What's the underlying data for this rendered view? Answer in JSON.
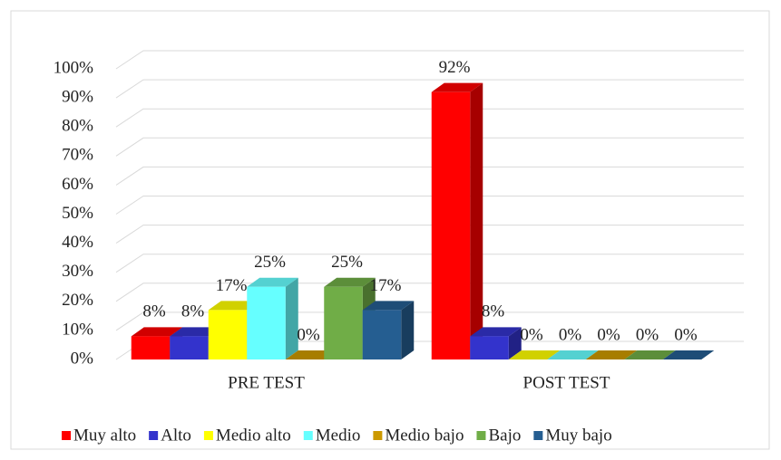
{
  "chart_data": {
    "type": "bar3d",
    "categories": [
      "PRE TEST",
      "POST TEST"
    ],
    "series": [
      {
        "name": "Muy alto",
        "color": "#ff0000",
        "values": [
          8,
          92
        ],
        "value_labels": [
          "8%",
          "92%"
        ]
      },
      {
        "name": "Alto",
        "color": "#3333cc",
        "values": [
          8,
          8
        ],
        "value_labels": [
          "8%",
          "8%"
        ]
      },
      {
        "name": "Medio alto",
        "color": "#ffff00",
        "values": [
          17,
          0
        ],
        "value_labels": [
          "17%",
          "0%"
        ]
      },
      {
        "name": "Medio",
        "color": "#66ffff",
        "values": [
          25,
          0
        ],
        "value_labels": [
          "25%",
          "0%"
        ]
      },
      {
        "name": "Medio bajo",
        "color": "#cc9900",
        "values": [
          0,
          0
        ],
        "value_labels": [
          "0%",
          "0%"
        ]
      },
      {
        "name": "Bajo",
        "color": "#70ad47",
        "values": [
          25,
          0
        ],
        "value_labels": [
          "25%",
          "0%"
        ]
      },
      {
        "name": "Muy bajo",
        "color": "#255e91",
        "values": [
          17,
          0
        ],
        "value_labels": [
          "17%",
          "0%"
        ]
      }
    ],
    "ylim": [
      0,
      100
    ],
    "yticks": [
      {
        "value": 0,
        "label": "0%"
      },
      {
        "value": 10,
        "label": "10%"
      },
      {
        "value": 20,
        "label": "20%"
      },
      {
        "value": 30,
        "label": "30%"
      },
      {
        "value": 40,
        "label": "40%"
      },
      {
        "value": 50,
        "label": "50%"
      },
      {
        "value": 60,
        "label": "60%"
      },
      {
        "value": 70,
        "label": "70%"
      },
      {
        "value": 80,
        "label": "80%"
      },
      {
        "value": 90,
        "label": "90%"
      },
      {
        "value": 100,
        "label": "100%"
      }
    ],
    "grid": true,
    "legend": "bottom"
  }
}
